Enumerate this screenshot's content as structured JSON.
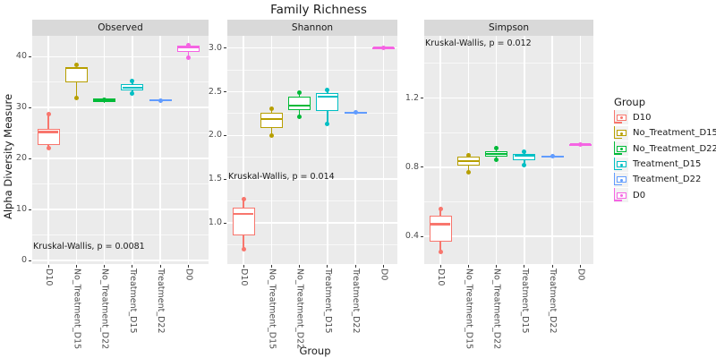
{
  "title": "Family Richness",
  "y_axis_title": "Alpha Diversity Measure",
  "x_axis_title": "Group",
  "categories": [
    "D10",
    "No_Treatment_D15",
    "No_Treatment_D22",
    "Treatment_D15",
    "Treatment_D22",
    "D0"
  ],
  "group_colors": {
    "D10": "#F8766D",
    "No_Treatment_D15": "#B79F00",
    "No_Treatment_D22": "#00BA38",
    "Treatment_D15": "#00BFC4",
    "Treatment_D22": "#619CFF",
    "D0": "#F564E3"
  },
  "legend": {
    "title": "Group",
    "items": [
      {
        "label": "D10",
        "color": "#F8766D"
      },
      {
        "label": "No_Treatment_D15",
        "color": "#B79F00"
      },
      {
        "label": "No_Treatment_D22",
        "color": "#00BA38"
      },
      {
        "label": "Treatment_D15",
        "color": "#00BFC4"
      },
      {
        "label": "Treatment_D22",
        "color": "#619CFF"
      },
      {
        "label": "D0",
        "color": "#F564E3"
      }
    ]
  },
  "chart_data": [
    {
      "type": "boxplot",
      "facet": "Observed",
      "ylim": [
        -0.7,
        44.09
      ],
      "yticks": [
        0,
        10,
        20,
        30,
        40
      ],
      "ytick_labels": [
        "0",
        "10",
        "20",
        "30",
        "40"
      ],
      "yminor": [
        5,
        15,
        25,
        35
      ],
      "annotation": {
        "text": "Kruskal-Wallis, p = 0.0081",
        "y": 2.6
      },
      "groups": [
        {
          "group": "D10",
          "whisker_low": 22.0,
          "q1": 22.7,
          "median": 25.2,
          "q3": 25.9,
          "whisker_high": 28.8,
          "points": [
            28.8,
            22.0
          ]
        },
        {
          "group": "No_Treatment_D15",
          "whisker_low": 31.9,
          "q1": 34.9,
          "median": 37.7,
          "q3": 37.9,
          "whisker_high": 37.9,
          "points": [
            38.3,
            31.9
          ]
        },
        {
          "group": "No_Treatment_D22",
          "whisker_low": 30.9,
          "q1": 31.1,
          "median": 31.45,
          "q3": 31.8,
          "whisker_high": 31.95,
          "points": [
            31.45
          ]
        },
        {
          "group": "Treatment_D15",
          "whisker_low": 32.7,
          "q1": 33.4,
          "median": 33.9,
          "q3": 34.6,
          "whisker_high": 35.2,
          "points": [
            35.2,
            32.7
          ]
        },
        {
          "group": "Treatment_D22",
          "whisker_low": 31.0,
          "q1": 31.2,
          "median": 31.4,
          "q3": 31.6,
          "whisker_high": 31.7,
          "points": [
            31.4
          ]
        },
        {
          "group": "D0",
          "whisker_low": 39.8,
          "q1": 40.9,
          "median": 41.9,
          "q3": 42.2,
          "whisker_high": 42.3,
          "points": [
            42.2,
            39.8
          ]
        }
      ]
    },
    {
      "type": "boxplot",
      "facet": "Shannon",
      "ylim": [
        0.53,
        3.14
      ],
      "yticks": [
        1.0,
        1.5,
        2.0,
        2.5,
        3.0
      ],
      "ytick_labels": [
        "1.0",
        "1.5",
        "2.0",
        "2.5",
        "3.0"
      ],
      "yminor": [
        0.75,
        1.25,
        1.75,
        2.25,
        2.75
      ],
      "annotation": {
        "text": "Kruskal-Wallis, p = 0.014",
        "y": 1.52
      },
      "groups": [
        {
          "group": "D10",
          "whisker_low": 0.7,
          "q1": 0.86,
          "median": 1.1,
          "q3": 1.17,
          "whisker_high": 1.27,
          "points": [
            1.27,
            0.7
          ]
        },
        {
          "group": "No_Treatment_D15",
          "whisker_low": 2.0,
          "q1": 2.09,
          "median": 2.19,
          "q3": 2.26,
          "whisker_high": 2.31,
          "points": [
            2.31,
            2.0
          ]
        },
        {
          "group": "No_Treatment_D22",
          "whisker_low": 2.21,
          "q1": 2.29,
          "median": 2.34,
          "q3": 2.44,
          "whisker_high": 2.49,
          "points": [
            2.49,
            2.21
          ]
        },
        {
          "group": "Treatment_D15",
          "whisker_low": 2.13,
          "q1": 2.28,
          "median": 2.44,
          "q3": 2.49,
          "whisker_high": 2.52,
          "points": [
            2.52,
            2.13
          ]
        },
        {
          "group": "Treatment_D22",
          "whisker_low": 2.24,
          "q1": 2.25,
          "median": 2.26,
          "q3": 2.27,
          "whisker_high": 2.28,
          "points": [
            2.26
          ]
        },
        {
          "group": "D0",
          "whisker_low": 2.99,
          "q1": 3.0,
          "median": 3.005,
          "q3": 3.01,
          "whisker_high": 3.02,
          "points": [
            3.005
          ]
        }
      ]
    },
    {
      "type": "boxplot",
      "facet": "Simpson",
      "ylim": [
        0.24,
        1.56
      ],
      "yticks": [
        0.4,
        0.8,
        1.2
      ],
      "ytick_labels": [
        "0.4",
        "0.8",
        "1.2"
      ],
      "yminor": [
        0.6,
        1.0,
        1.4
      ],
      "annotation": {
        "text": "Kruskal-Wallis, p = 0.012",
        "y": 1.51
      },
      "groups": [
        {
          "group": "D10",
          "whisker_low": 0.31,
          "q1": 0.37,
          "median": 0.47,
          "q3": 0.52,
          "whisker_high": 0.56,
          "points": [
            0.56,
            0.31
          ]
        },
        {
          "group": "No_Treatment_D15",
          "whisker_low": 0.77,
          "q1": 0.81,
          "median": 0.835,
          "q3": 0.86,
          "whisker_high": 0.87,
          "points": [
            0.87,
            0.77
          ]
        },
        {
          "group": "No_Treatment_D22",
          "whisker_low": 0.845,
          "q1": 0.86,
          "median": 0.875,
          "q3": 0.89,
          "whisker_high": 0.91,
          "points": [
            0.91,
            0.845
          ]
        },
        {
          "group": "Treatment_D15",
          "whisker_low": 0.81,
          "q1": 0.84,
          "median": 0.865,
          "q3": 0.875,
          "whisker_high": 0.89,
          "points": [
            0.89,
            0.81
          ]
        },
        {
          "group": "Treatment_D22",
          "whisker_low": 0.855,
          "q1": 0.858,
          "median": 0.862,
          "q3": 0.866,
          "whisker_high": 0.87,
          "points": [
            0.862
          ]
        },
        {
          "group": "D0",
          "whisker_low": 0.928,
          "q1": 0.93,
          "median": 0.932,
          "q3": 0.935,
          "whisker_high": 0.938,
          "points": [
            0.932
          ]
        }
      ]
    }
  ]
}
